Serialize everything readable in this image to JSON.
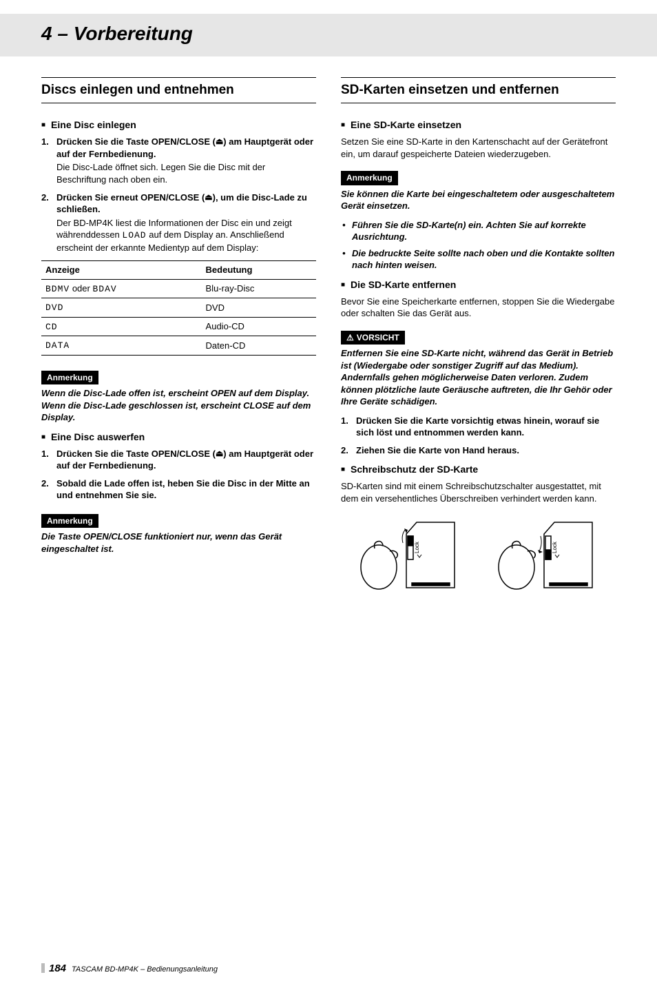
{
  "chapter": "4 – Vorbereitung",
  "footer": {
    "page": "184",
    "doc": "TASCAM BD-MP4K – Bedienungsanleitung"
  },
  "left": {
    "title": "Discs einlegen und entnehmen",
    "s1": {
      "head": "Eine Disc einlegen",
      "step1_head": "Drücken Sie die Taste OPEN/CLOSE (",
      "step1_head2": ") am Hauptgerät oder auf der Fernbedienung.",
      "step1_body": "Die Disc-Lade öffnet sich. Legen Sie die Disc mit der Beschriftung nach oben ein.",
      "step2_head": "Drücken Sie erneut OPEN/CLOSE (",
      "step2_head2": "), um die Disc-Lade zu schließen.",
      "step2_body_a": "Der BD-MP4K liest die Informationen der Disc ein und zeigt währenddessen ",
      "step2_body_load": "LOAD",
      "step2_body_b": " auf dem Display an. Anschließend erscheint der erkannte Medientyp auf dem Display:"
    },
    "table": {
      "h1": "Anzeige",
      "h2": "Bedeutung",
      "rows": [
        {
          "c1a": "BDMV",
          "c1mid": " oder ",
          "c1b": "BDAV",
          "c2": "Blu-ray-Disc"
        },
        {
          "c1a": "DVD",
          "c1mid": "",
          "c1b": "",
          "c2": "DVD"
        },
        {
          "c1a": "CD",
          "c1mid": "",
          "c1b": "",
          "c2": "Audio-CD"
        },
        {
          "c1a": "DATA",
          "c1mid": "",
          "c1b": "",
          "c2": "Daten-CD"
        }
      ]
    },
    "note1_label": "Anmerkung",
    "note1_body": "Wenn die Disc-Lade offen ist, erscheint OPEN auf dem Display. Wenn die Disc-Lade geschlossen ist, erscheint CLOSE auf dem Display.",
    "s2": {
      "head": "Eine Disc auswerfen",
      "step1": "Drücken Sie die Taste OPEN/CLOSE (",
      "step1b": ") am Hauptgerät oder auf der Fernbedienung.",
      "step2": "Sobald die Lade offen ist, heben Sie die Disc in der Mitte an und entnehmen Sie sie."
    },
    "note2_label": "Anmerkung",
    "note2_body": "Die Taste OPEN/CLOSE funktioniert nur, wenn das Gerät eingeschaltet ist."
  },
  "right": {
    "title": "SD-Karten einsetzen und entfernen",
    "s1": {
      "head": "Eine SD-Karte einsetzen",
      "p": "Setzen Sie eine SD-Karte in den Kartenschacht auf der Gerätefront ein, um darauf gespeicherte Dateien wiederzugeben."
    },
    "note1_label": "Anmerkung",
    "note1_body": "Sie können die Karte bei eingeschaltetem oder ausgeschaltetem Gerät einsetzen.",
    "note1_b1": "Führen Sie die SD-Karte(n) ein. Achten Sie auf korrekte Ausrichtung.",
    "note1_b2": "Die bedruckte Seite sollte nach oben und die Kontakte sollten nach hinten weisen.",
    "s2": {
      "head": "Die SD-Karte entfernen",
      "p": "Bevor Sie eine Speicherkarte entfernen, stoppen Sie die Wiedergabe oder schalten Sie das Gerät aus."
    },
    "caution_label": "VORSICHT",
    "caution_body": "Entfernen Sie eine SD-Karte nicht, während das Gerät in Betrieb ist (Wiedergabe oder sonstiger Zugriff auf das Medium). Andernfalls gehen möglicherweise Daten verloren. Zudem können plötzliche laute Geräusche auftreten, die Ihr Gehör oder Ihre Geräte schädigen.",
    "caution_step1": "Drücken Sie die Karte vorsichtig etwas hinein, worauf sie sich löst und entnommen werden kann.",
    "caution_step2": "Ziehen Sie die Karte von Hand heraus.",
    "s3": {
      "head": "Schreibschutz der SD-Karte",
      "p": "SD-Karten sind mit einem Schreibschutzschalter ausgestattet, mit dem ein versehentliches Überschreiben verhindert werden kann."
    },
    "fig": {
      "lock_label": "Lock"
    }
  }
}
